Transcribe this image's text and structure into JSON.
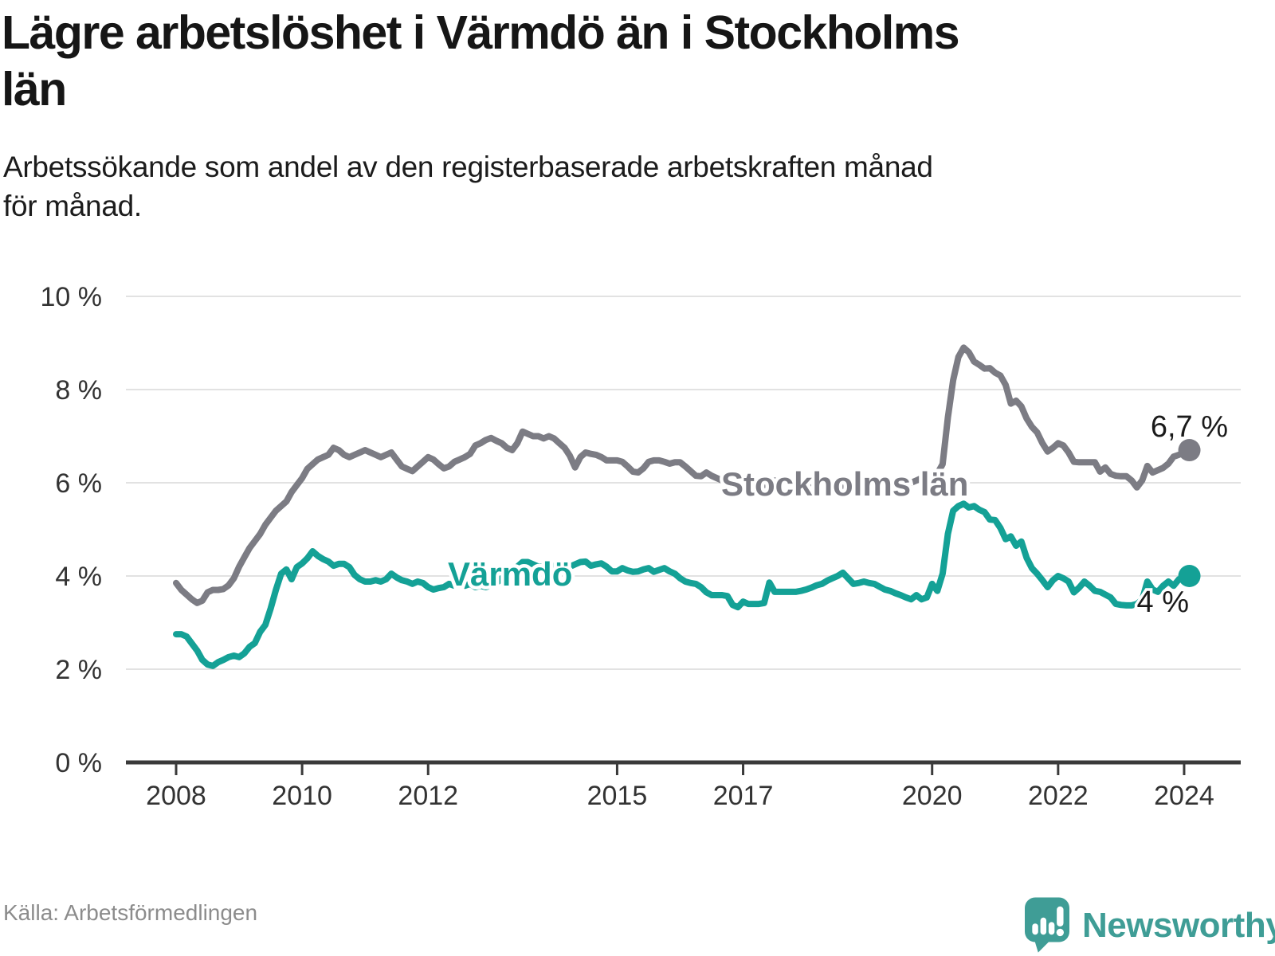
{
  "title_lines": [
    "Lägre arbetslöshet i Värmdö än i Stockholms",
    "län"
  ],
  "subtitle_lines": [
    "Arbetssökande som andel av den registerbaserade arbetskraften månad",
    "för månad."
  ],
  "source": "Källa: Arbetsförmedlingen",
  "logo": {
    "text": "Newsworthy",
    "color": "#3f9d96",
    "icon": "speech-bubble-bar-chart"
  },
  "colors": {
    "stockholm_line": "#7c7c84",
    "varmdo_line": "#14a196",
    "gridline": "#e2e2e2",
    "axis": "#3a3a3a",
    "tick_label": "#333333",
    "end_label": "#1a1a1a"
  },
  "chart_data": {
    "type": "line",
    "title": "Lägre arbetslöshet i Värmdö än i Stockholms län",
    "subtitle": "Arbetssökande som andel av den registerbaserade arbetskraften månad för månad.",
    "xlabel": "",
    "ylabel": "",
    "x_unit": "year-month",
    "x_start_year": 2008,
    "x_start_month": 1,
    "x_step_months": 1,
    "x_end_year": 2024,
    "x_end_month": 2,
    "xlim": [
      2007.2,
      2024.9
    ],
    "ylim": [
      0,
      10
    ],
    "grid": "horizontal",
    "legend_position": "inline-labels",
    "x_ticks": [
      2008,
      2010,
      2012,
      2015,
      2017,
      2020,
      2022,
      2024
    ],
    "y_ticks": [
      0,
      2,
      4,
      6,
      8,
      10
    ],
    "y_tick_labels": [
      "0 %",
      "2 %",
      "4 %",
      "6 %",
      "8 %",
      "10 %"
    ],
    "series": [
      {
        "name": "Stockholms län",
        "color": "#7c7c84",
        "end_label": "6,7 %",
        "end_value": 6.7,
        "values": [
          3.85,
          3.7,
          3.6,
          3.5,
          3.42,
          3.47,
          3.65,
          3.7,
          3.7,
          3.72,
          3.8,
          3.95,
          4.2,
          4.4,
          4.6,
          4.75,
          4.9,
          5.1,
          5.25,
          5.4,
          5.5,
          5.6,
          5.8,
          5.95,
          6.1,
          6.3,
          6.4,
          6.5,
          6.55,
          6.6,
          6.75,
          6.7,
          6.6,
          6.55,
          6.6,
          6.65,
          6.7,
          6.65,
          6.6,
          6.55,
          6.6,
          6.65,
          6.5,
          6.35,
          6.3,
          6.25,
          6.35,
          6.45,
          6.55,
          6.5,
          6.4,
          6.31,
          6.35,
          6.45,
          6.5,
          6.55,
          6.62,
          6.8,
          6.85,
          6.92,
          6.96,
          6.9,
          6.85,
          6.75,
          6.7,
          6.85,
          7.1,
          7.05,
          7.0,
          7.0,
          6.95,
          7.0,
          6.95,
          6.85,
          6.75,
          6.58,
          6.33,
          6.55,
          6.65,
          6.62,
          6.6,
          6.55,
          6.48,
          6.48,
          6.48,
          6.45,
          6.35,
          6.24,
          6.22,
          6.31,
          6.45,
          6.48,
          6.48,
          6.45,
          6.41,
          6.44,
          6.44,
          6.35,
          6.25,
          6.15,
          6.14,
          6.22,
          6.15,
          6.1,
          6.05,
          5.98,
          6.08,
          6.1,
          6.1,
          6.05,
          6.0,
          5.95,
          5.95,
          6.0,
          6.05,
          6.0,
          5.95,
          5.9,
          5.9,
          5.95,
          6.0,
          5.95,
          5.9,
          5.85,
          5.85,
          5.9,
          5.95,
          5.9,
          5.85,
          5.8,
          5.85,
          5.9,
          5.95,
          5.9,
          5.9,
          5.9,
          5.95,
          6.0,
          6.05,
          6.05,
          6.0,
          6.05,
          6.1,
          6.1,
          6.15,
          6.2,
          6.4,
          7.4,
          8.2,
          8.7,
          8.9,
          8.8,
          8.6,
          8.53,
          8.45,
          8.46,
          8.36,
          8.3,
          8.1,
          7.7,
          7.76,
          7.64,
          7.38,
          7.2,
          7.08,
          6.85,
          6.67,
          6.75,
          6.85,
          6.8,
          6.65,
          6.45,
          6.44,
          6.44,
          6.44,
          6.44,
          6.24,
          6.33,
          6.19,
          6.15,
          6.14,
          6.14,
          6.05,
          5.9,
          6.05,
          6.36,
          6.22,
          6.27,
          6.32,
          6.41,
          6.56,
          6.6,
          6.65,
          6.7
        ]
      },
      {
        "name": "Värmdö",
        "color": "#14a196",
        "end_label": "4 %",
        "end_value": 4.0,
        "values": [
          2.75,
          2.75,
          2.7,
          2.55,
          2.4,
          2.2,
          2.1,
          2.07,
          2.15,
          2.2,
          2.26,
          2.29,
          2.26,
          2.34,
          2.48,
          2.56,
          2.8,
          2.95,
          3.3,
          3.7,
          4.05,
          4.14,
          3.93,
          4.19,
          4.27,
          4.38,
          4.53,
          4.43,
          4.36,
          4.31,
          4.22,
          4.26,
          4.26,
          4.19,
          4.02,
          3.93,
          3.88,
          3.88,
          3.91,
          3.88,
          3.93,
          4.05,
          3.97,
          3.91,
          3.88,
          3.83,
          3.88,
          3.85,
          3.76,
          3.71,
          3.74,
          3.76,
          3.83,
          3.79,
          3.83,
          3.79,
          3.83,
          3.76,
          3.79,
          3.76,
          3.8,
          3.85,
          3.95,
          4.02,
          4.1,
          4.2,
          4.3,
          4.3,
          4.25,
          4.2,
          4.2,
          4.25,
          4.2,
          4.15,
          4.1,
          4.2,
          4.25,
          4.3,
          4.31,
          4.22,
          4.25,
          4.27,
          4.2,
          4.1,
          4.1,
          4.17,
          4.12,
          4.09,
          4.1,
          4.14,
          4.17,
          4.09,
          4.13,
          4.17,
          4.1,
          4.05,
          3.95,
          3.88,
          3.85,
          3.83,
          3.76,
          3.65,
          3.59,
          3.59,
          3.59,
          3.57,
          3.38,
          3.33,
          3.45,
          3.4,
          3.4,
          3.4,
          3.42,
          3.86,
          3.66,
          3.66,
          3.66,
          3.66,
          3.66,
          3.68,
          3.71,
          3.75,
          3.8,
          3.83,
          3.9,
          3.95,
          4.0,
          4.07,
          3.95,
          3.83,
          3.85,
          3.88,
          3.85,
          3.83,
          3.77,
          3.71,
          3.68,
          3.63,
          3.59,
          3.54,
          3.5,
          3.59,
          3.5,
          3.54,
          3.83,
          3.68,
          4.05,
          4.9,
          5.4,
          5.5,
          5.55,
          5.47,
          5.5,
          5.42,
          5.37,
          5.21,
          5.2,
          5.03,
          4.79,
          4.85,
          4.65,
          4.74,
          4.39,
          4.17,
          4.05,
          3.91,
          3.76,
          3.91,
          4.0,
          3.95,
          3.88,
          3.65,
          3.75,
          3.88,
          3.79,
          3.68,
          3.66,
          3.6,
          3.54,
          3.4,
          3.38,
          3.37,
          3.37,
          3.4,
          3.49,
          3.88,
          3.71,
          3.66,
          3.79,
          3.88,
          3.79,
          3.93,
          3.95,
          4.0
        ]
      }
    ]
  }
}
